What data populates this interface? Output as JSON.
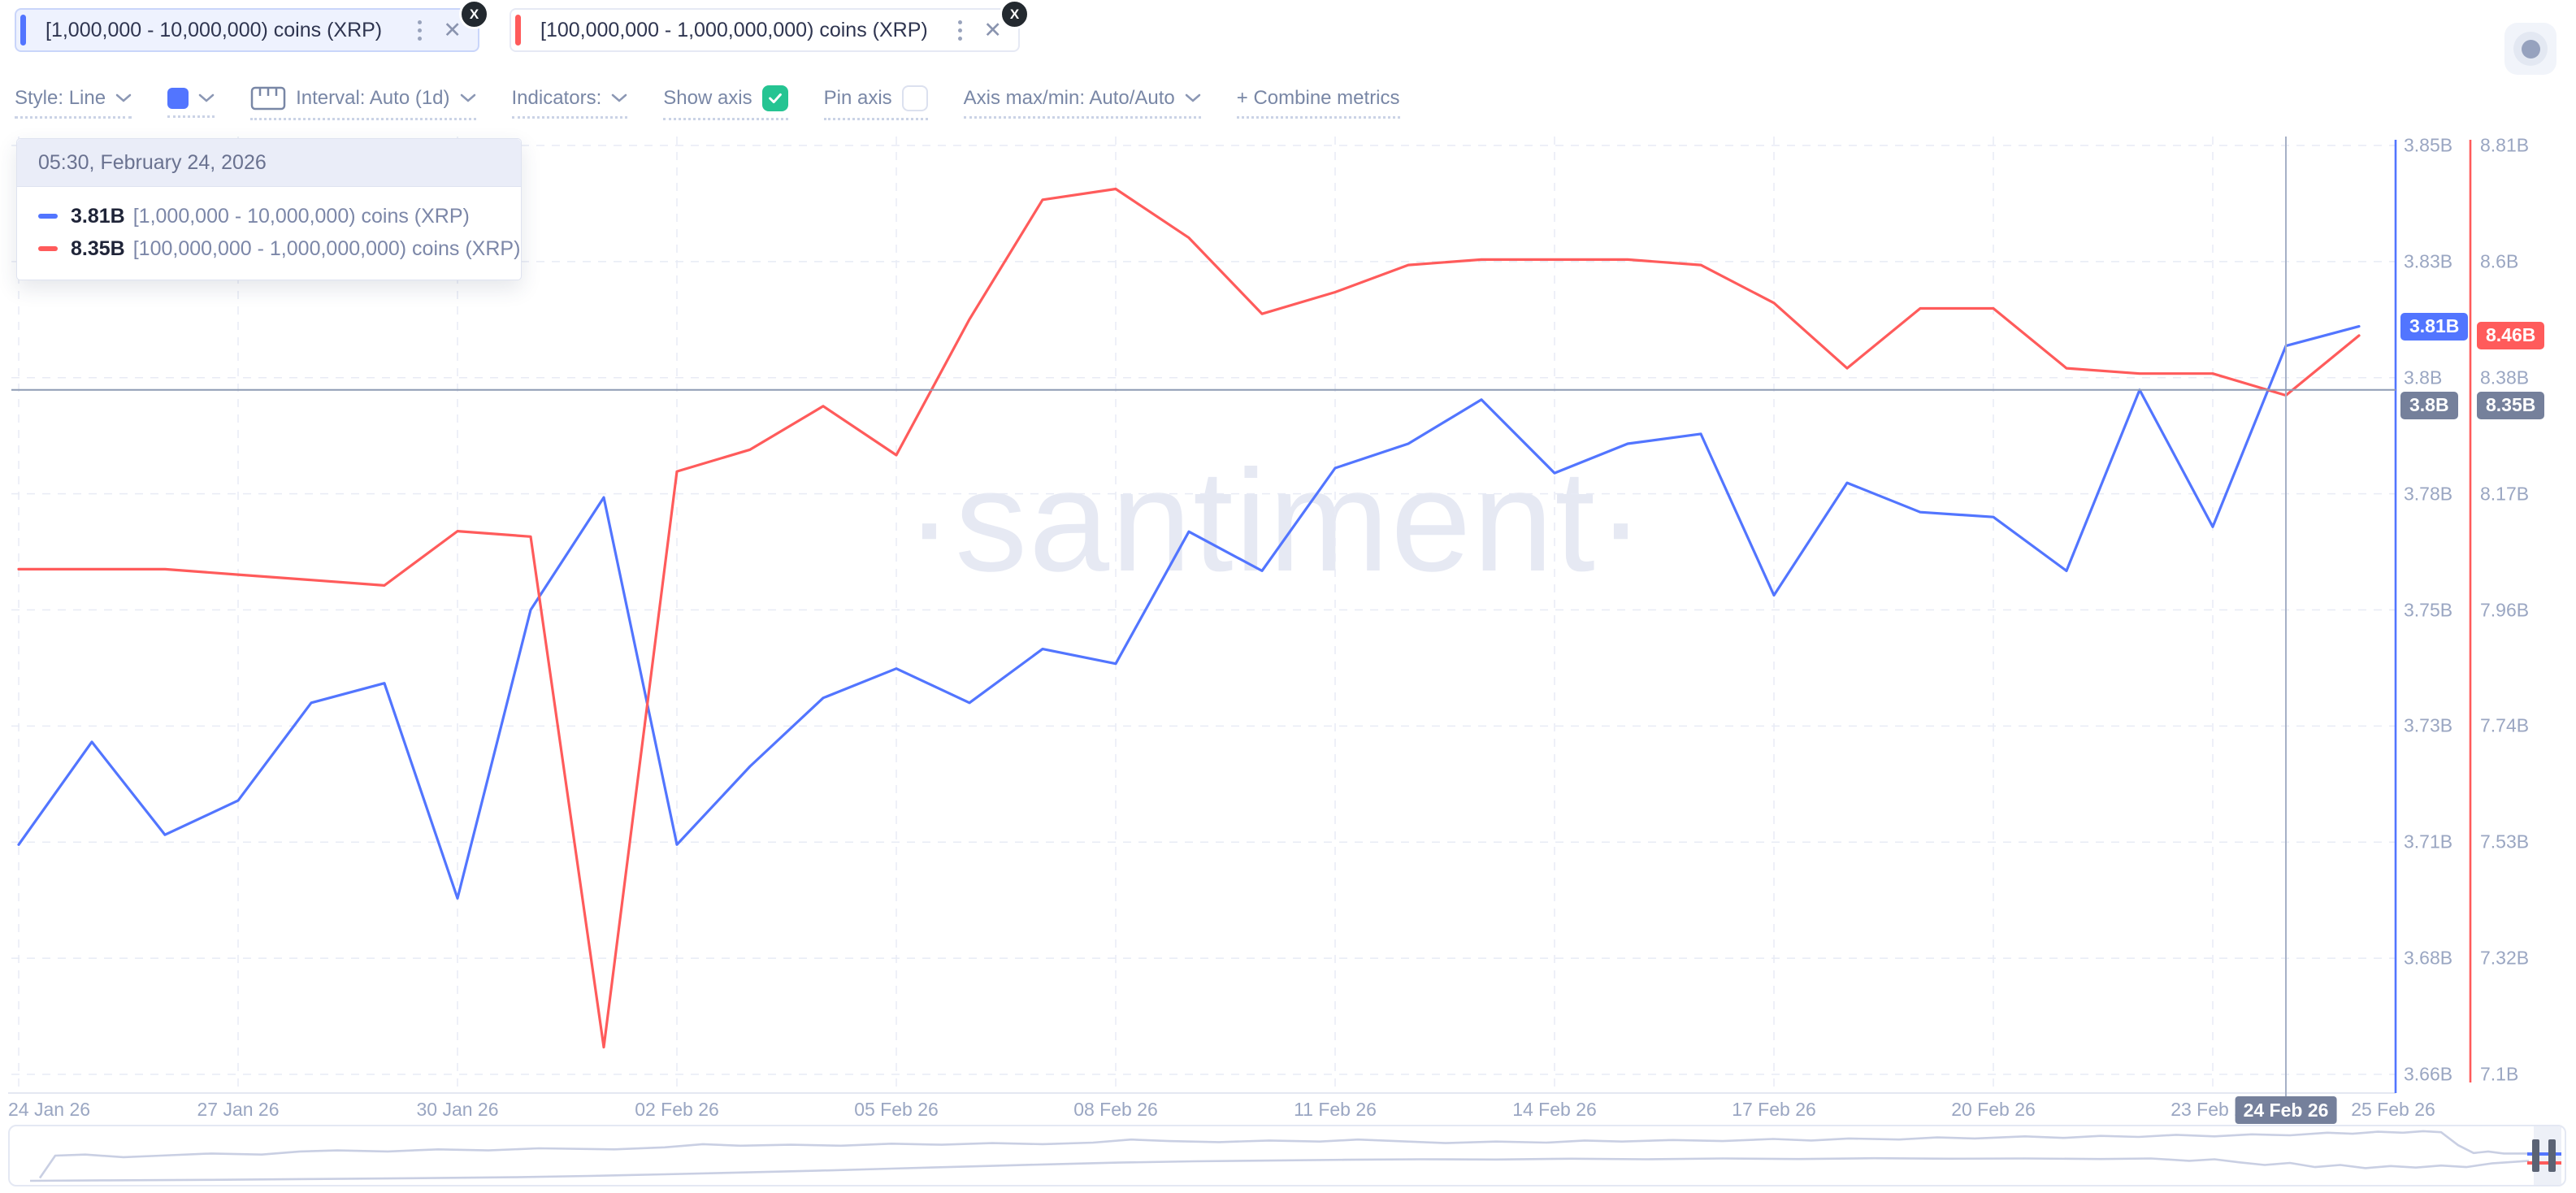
{
  "metric_chips": [
    {
      "label": "[1,000,000 - 10,000,000) coins (XRP)",
      "color": "#5275FF",
      "asset_badge": "X",
      "selected": true
    },
    {
      "label": "[100,000,000 - 1,000,000,000) coins (XRP)",
      "color": "#FF5B5B",
      "asset_badge": "X",
      "selected": false
    }
  ],
  "toolbar": {
    "style_label": "Style: Line",
    "interval_label": "Interval: Auto (1d)",
    "indicators_label": "Indicators:",
    "show_axis_label": "Show axis",
    "show_axis_checked": true,
    "pin_axis_label": "Pin axis",
    "pin_axis_checked": false,
    "axis_maxmin_label": "Axis max/min: Auto/Auto",
    "combine_label": "+ Combine metrics",
    "swatch_color": "#5275FF",
    "checkbox_color": "#25C492"
  },
  "tooltip": {
    "timestamp": "05:30, February 24, 2026",
    "rows": [
      {
        "value": "3.81B",
        "label": "[1,000,000 - 10,000,000) coins (XRP)",
        "color": "#5275FF"
      },
      {
        "value": "8.35B",
        "label": "[100,000,000 - 1,000,000,000) coins (XRP)",
        "color": "#FF5B5B"
      }
    ]
  },
  "watermark": "·santiment·",
  "chart_data": {
    "type": "line",
    "grid": "dashed",
    "legend_position": "tooltip-top-left",
    "x": [
      "2026-01-24",
      "2026-01-25",
      "2026-01-26",
      "2026-01-27",
      "2026-01-28",
      "2026-01-29",
      "2026-01-30",
      "2026-01-31",
      "2026-02-01",
      "2026-02-02",
      "2026-02-03",
      "2026-02-04",
      "2026-02-05",
      "2026-02-06",
      "2026-02-07",
      "2026-02-08",
      "2026-02-09",
      "2026-02-10",
      "2026-02-11",
      "2026-02-12",
      "2026-02-13",
      "2026-02-14",
      "2026-02-15",
      "2026-02-16",
      "2026-02-17",
      "2026-02-18",
      "2026-02-19",
      "2026-02-20",
      "2026-02-21",
      "2026-02-22",
      "2026-02-23",
      "2026-02-24",
      "2026-02-25"
    ],
    "series": [
      {
        "name": "[1,000,000 - 10,000,000) coins (XRP)",
        "color": "#5275FF",
        "axis": "blue",
        "unit": "B",
        "values": [
          3.707,
          3.728,
          3.709,
          3.716,
          3.736,
          3.74,
          3.696,
          3.755,
          3.778,
          3.707,
          3.723,
          3.737,
          3.743,
          3.736,
          3.747,
          3.744,
          3.771,
          3.763,
          3.784,
          3.789,
          3.798,
          3.783,
          3.789,
          3.791,
          3.758,
          3.781,
          3.775,
          3.774,
          3.763,
          3.8,
          3.772,
          3.809,
          3.813
        ]
      },
      {
        "name": "[100,000,000 - 1,000,000,000) coins (XRP)",
        "color": "#FF5B5B",
        "axis": "red",
        "unit": "B",
        "values": [
          8.03,
          8.03,
          8.03,
          8.02,
          8.01,
          8.0,
          8.1,
          8.09,
          7.15,
          8.21,
          8.25,
          8.33,
          8.24,
          8.49,
          8.71,
          8.73,
          8.64,
          8.5,
          8.54,
          8.59,
          8.6,
          8.6,
          8.6,
          8.59,
          8.52,
          8.4,
          8.51,
          8.51,
          8.4,
          8.39,
          8.39,
          8.35,
          8.46
        ]
      }
    ],
    "axes": {
      "blue": {
        "max": 3.85,
        "min": 3.66,
        "tick_labels": [
          "3.85B",
          "3.83B",
          "3.8B",
          "3.78B",
          "3.75B",
          "3.73B",
          "3.71B",
          "3.68B",
          "3.66B"
        ],
        "color": "#5275FF"
      },
      "red": {
        "max": 8.81,
        "min": 7.1,
        "tick_labels": [
          "8.81B",
          "8.6B",
          "8.38B",
          "8.17B",
          "7.96B",
          "7.74B",
          "7.53B",
          "7.32B",
          "7.1B"
        ],
        "color": "#FF5B5B"
      }
    },
    "x_ticks": [
      {
        "index": 0,
        "label": "24 Jan 26"
      },
      {
        "index": 3,
        "label": "27 Jan 26"
      },
      {
        "index": 6,
        "label": "30 Jan 26"
      },
      {
        "index": 9,
        "label": "02 Feb 26"
      },
      {
        "index": 12,
        "label": "05 Feb 26"
      },
      {
        "index": 15,
        "label": "08 Feb 26"
      },
      {
        "index": 18,
        "label": "11 Feb 26"
      },
      {
        "index": 21,
        "label": "14 Feb 26"
      },
      {
        "index": 24,
        "label": "17 Feb 26"
      },
      {
        "index": 27,
        "label": "20 Feb 26"
      },
      {
        "index": 30,
        "label": "23 Feb 26"
      },
      {
        "index": 32,
        "label": "25 Feb 26",
        "gridline": false
      }
    ],
    "last_value_badges": {
      "blue": "3.81B",
      "red": "8.46B"
    },
    "crosshair": {
      "index": 31,
      "date_label": "24 Feb 26",
      "blue_axis_badge": "3.8B",
      "red_axis_badge": "8.35B",
      "badge_color": "#75809B"
    }
  },
  "minimap": {
    "line_color": "#C9CFE3",
    "handle": {
      "bar_color": "#5B6374",
      "blue_mark": "#5275FF",
      "red_mark": "#FF5B5B"
    },
    "line1": [
      [
        0.012,
        0.93
      ],
      [
        0.018,
        0.5
      ],
      [
        0.03,
        0.48
      ],
      [
        0.045,
        0.53
      ],
      [
        0.06,
        0.5
      ],
      [
        0.08,
        0.46
      ],
      [
        0.1,
        0.48
      ],
      [
        0.115,
        0.42
      ],
      [
        0.13,
        0.4
      ],
      [
        0.15,
        0.42
      ],
      [
        0.17,
        0.38
      ],
      [
        0.19,
        0.4
      ],
      [
        0.21,
        0.36
      ],
      [
        0.24,
        0.38
      ],
      [
        0.26,
        0.34
      ],
      [
        0.275,
        0.28
      ],
      [
        0.29,
        0.31
      ],
      [
        0.31,
        0.29
      ],
      [
        0.33,
        0.31
      ],
      [
        0.35,
        0.27
      ],
      [
        0.37,
        0.29
      ],
      [
        0.39,
        0.26
      ],
      [
        0.41,
        0.28
      ],
      [
        0.43,
        0.25
      ],
      [
        0.445,
        0.19
      ],
      [
        0.46,
        0.22
      ],
      [
        0.48,
        0.24
      ],
      [
        0.5,
        0.21
      ],
      [
        0.52,
        0.23
      ],
      [
        0.535,
        0.19
      ],
      [
        0.55,
        0.22
      ],
      [
        0.57,
        0.26
      ],
      [
        0.59,
        0.23
      ],
      [
        0.61,
        0.25
      ],
      [
        0.625,
        0.21
      ],
      [
        0.64,
        0.23
      ],
      [
        0.66,
        0.2
      ],
      [
        0.68,
        0.22
      ],
      [
        0.7,
        0.18
      ],
      [
        0.715,
        0.21
      ],
      [
        0.73,
        0.17
      ],
      [
        0.75,
        0.19
      ],
      [
        0.765,
        0.15
      ],
      [
        0.78,
        0.17
      ],
      [
        0.8,
        0.13
      ],
      [
        0.815,
        0.16
      ],
      [
        0.83,
        0.12
      ],
      [
        0.845,
        0.14
      ],
      [
        0.86,
        0.1
      ],
      [
        0.875,
        0.13
      ],
      [
        0.89,
        0.09
      ],
      [
        0.905,
        0.11
      ],
      [
        0.92,
        0.06
      ],
      [
        0.93,
        0.08
      ],
      [
        0.94,
        0.04
      ],
      [
        0.95,
        0.06
      ],
      [
        0.958,
        0.03
      ],
      [
        0.965,
        0.05
      ],
      [
        0.972,
        0.3
      ],
      [
        0.978,
        0.45
      ],
      [
        0.984,
        0.42
      ],
      [
        0.99,
        0.46
      ],
      [
        1.0,
        0.46
      ]
    ],
    "line2": [
      [
        0.008,
        0.985
      ],
      [
        0.04,
        0.975
      ],
      [
        0.08,
        0.965
      ],
      [
        0.12,
        0.95
      ],
      [
        0.16,
        0.935
      ],
      [
        0.2,
        0.915
      ],
      [
        0.23,
        0.89
      ],
      [
        0.26,
        0.86
      ],
      [
        0.29,
        0.825
      ],
      [
        0.32,
        0.79
      ],
      [
        0.35,
        0.75
      ],
      [
        0.38,
        0.71
      ],
      [
        0.41,
        0.67
      ],
      [
        0.44,
        0.635
      ],
      [
        0.47,
        0.61
      ],
      [
        0.5,
        0.595
      ],
      [
        0.53,
        0.58
      ],
      [
        0.56,
        0.57
      ],
      [
        0.59,
        0.575
      ],
      [
        0.62,
        0.56
      ],
      [
        0.65,
        0.57
      ],
      [
        0.68,
        0.555
      ],
      [
        0.71,
        0.565
      ],
      [
        0.74,
        0.55
      ],
      [
        0.77,
        0.56
      ],
      [
        0.8,
        0.555
      ],
      [
        0.83,
        0.565
      ],
      [
        0.85,
        0.555
      ],
      [
        0.865,
        0.6
      ],
      [
        0.875,
        0.57
      ],
      [
        0.885,
        0.63
      ],
      [
        0.895,
        0.68
      ],
      [
        0.905,
        0.64
      ],
      [
        0.915,
        0.72
      ],
      [
        0.925,
        0.68
      ],
      [
        0.935,
        0.74
      ],
      [
        0.945,
        0.7
      ],
      [
        0.955,
        0.73
      ],
      [
        0.965,
        0.69
      ],
      [
        0.975,
        0.72
      ],
      [
        0.985,
        0.65
      ],
      [
        1.0,
        0.6
      ]
    ]
  }
}
